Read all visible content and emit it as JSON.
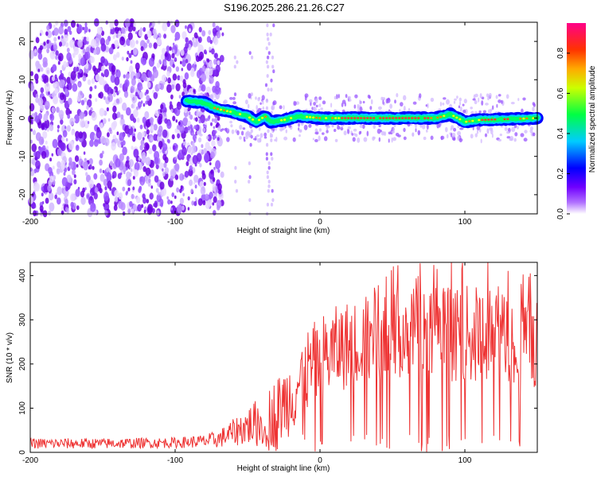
{
  "title": "S196.2025.286.21.26.C27",
  "colors": {
    "snr_line": "#ee3333",
    "frame": "#000000",
    "colormap": [
      "#ffffff",
      "#8800ff",
      "#0000ff",
      "#00ccff",
      "#00ff66",
      "#ffff00",
      "#ff8800",
      "#ff0044",
      "#ff0088"
    ]
  },
  "chart_data": [
    {
      "type": "heatmap",
      "xlabel": "Height of straight line (km)",
      "ylabel": "Frequency (Hz)",
      "xlim": [
        -200,
        150
      ],
      "ylim": [
        -25,
        25
      ],
      "xticks": [
        -200,
        -100,
        0,
        100
      ],
      "yticks": [
        20,
        10,
        0,
        -10,
        -20
      ],
      "colorbar": {
        "label": "Normalized spectral amplitude",
        "range": [
          0.0,
          0.95
        ],
        "ticks": [
          "0.0",
          "0.2",
          "0.4",
          "0.6",
          "0.8"
        ]
      },
      "ridge": {
        "description_free": true,
        "x_start": -92,
        "x_end": 150,
        "freq_points": [
          [
            -92,
            4.5
          ],
          [
            -80,
            4.0
          ],
          [
            -72,
            2.5
          ],
          [
            -60,
            1.5
          ],
          [
            -50,
            0.5
          ],
          [
            -44,
            -1.0
          ],
          [
            -38,
            0.5
          ],
          [
            -34,
            -1.0
          ],
          [
            -25,
            -0.5
          ],
          [
            -15,
            0.5
          ],
          [
            0,
            0.0
          ],
          [
            40,
            0.0
          ],
          [
            80,
            0.0
          ],
          [
            90,
            1.0
          ],
          [
            100,
            -1.0
          ],
          [
            110,
            -0.5
          ],
          [
            150,
            0.0
          ]
        ]
      },
      "noise_region": [
        -200,
        -75
      ]
    },
    {
      "type": "line",
      "xlabel": "Height of straight line (km)",
      "ylabel": "SNR (10 * v/v)",
      "xlim": [
        -200,
        150
      ],
      "ylim": [
        0,
        430
      ],
      "xticks": [
        -200,
        -100,
        0,
        100
      ],
      "yticks": [
        0,
        100,
        200,
        300,
        400
      ],
      "series": [
        {
          "name": "SNR",
          "envelope_x": [
            -200,
            -150,
            -100,
            -80,
            -70,
            -60,
            -50,
            -40,
            -30,
            -20,
            -10,
            0,
            10,
            20,
            30,
            40,
            50,
            60,
            70,
            80,
            90,
            100,
            110,
            120,
            130,
            140,
            150
          ],
          "envelope_mean": [
            20,
            20,
            22,
            25,
            30,
            45,
            60,
            70,
            90,
            130,
            180,
            210,
            230,
            245,
            255,
            265,
            270,
            272,
            270,
            268,
            270,
            268,
            265,
            262,
            260,
            258,
            255
          ],
          "envelope_amp": [
            12,
            12,
            12,
            15,
            20,
            30,
            45,
            60,
            80,
            90,
            95,
            100,
            100,
            100,
            100,
            100,
            110,
            110,
            110,
            110,
            110,
            110,
            110,
            110,
            110,
            110,
            110
          ]
        }
      ]
    }
  ]
}
